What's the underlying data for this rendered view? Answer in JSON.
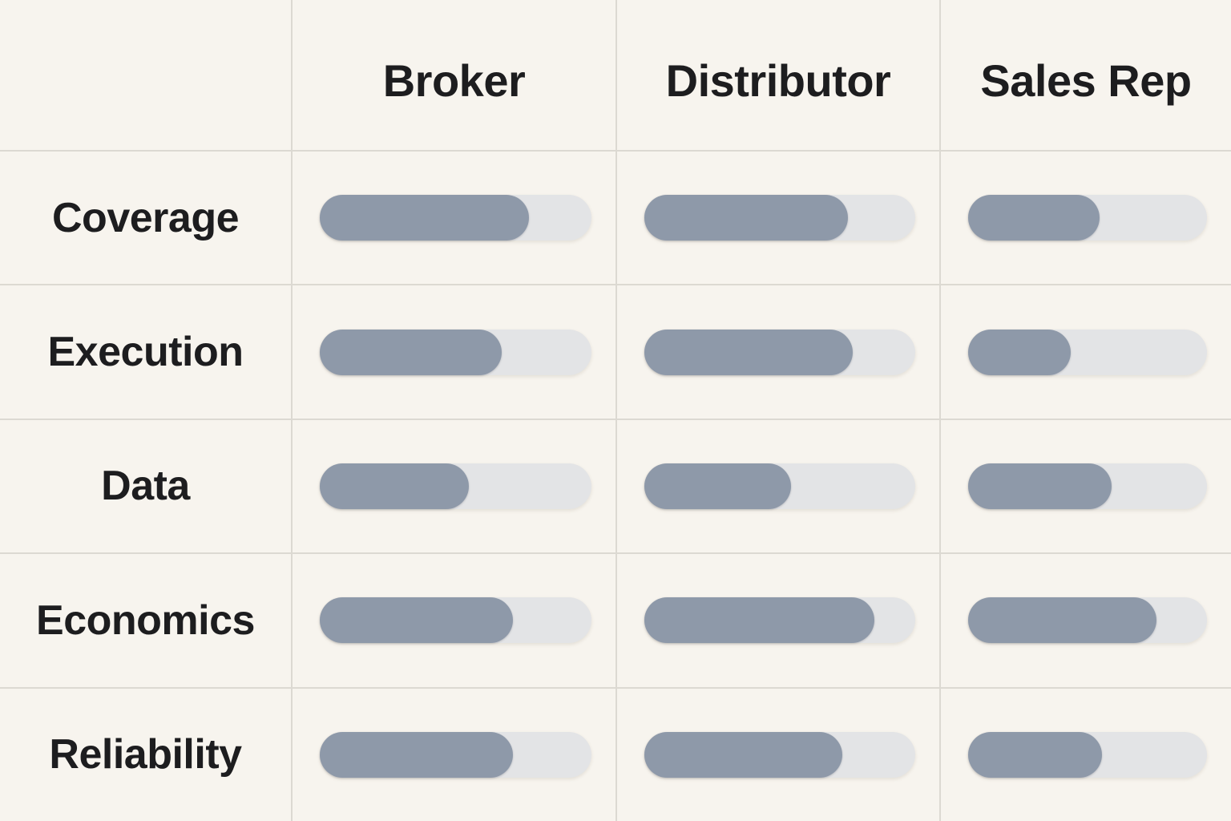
{
  "colors": {
    "bg": "#f7f4ee",
    "grid": "#dcd9d2",
    "fill": "#8e99a9",
    "track": "#e3e4e6",
    "text": "#1d1d1f"
  },
  "chart_data": {
    "type": "table",
    "subtype": "rating-bar-matrix",
    "title": "",
    "corner_label": "",
    "categories": [
      "Coverage",
      "Execution",
      "Data",
      "Economics",
      "Reliability"
    ],
    "series": [
      {
        "name": "Broker",
        "values": [
          77,
          67,
          55,
          71,
          71
        ]
      },
      {
        "name": "Distributor",
        "values": [
          75,
          77,
          54,
          85,
          73
        ]
      },
      {
        "name": "Sales Rep",
        "values": [
          55,
          43,
          60,
          79,
          56
        ]
      }
    ],
    "value_range": [
      0,
      100
    ],
    "value_unit": "percent of track filled",
    "legend_position": "none",
    "grid": "on"
  }
}
